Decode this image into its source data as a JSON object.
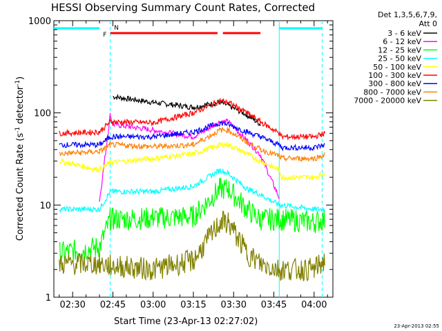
{
  "chart_data": {
    "type": "line",
    "title": "HESSI Observing Summary Count Rates, Corrected",
    "xlabel": "Start Time (23-Apr-13 02:27:02)",
    "ylabel": "Corrected Count Rate (s",
    "ylabel_sup": "-1",
    "ylabel_tail": " detector",
    "ylabel_end": ")",
    "xlim": [
      "02:23",
      "04:07"
    ],
    "xticks": [
      "02:30",
      "02:45",
      "03:00",
      "03:15",
      "03:30",
      "03:45",
      "04:00"
    ],
    "ylim": [
      1,
      1000
    ],
    "yscale": "log",
    "yticks": [
      "1",
      "10",
      "100",
      "1000"
    ],
    "legend_header": [
      "Det 1,3,5,6,7,9,",
      "Att 0"
    ],
    "legend_placement": "right",
    "footer_stamp": "23-Apr-2013 02:55",
    "flags": {
      "flare_label": "F",
      "night_label": "N",
      "saa_color": "#00ffff",
      "flare_color": "#ff0000",
      "saa_segments": [
        [
          "02:23",
          "02:40"
        ],
        [
          "03:47",
          "04:03"
        ]
      ],
      "flare_segments": [
        [
          "02:44",
          "03:24"
        ],
        [
          "03:26",
          "03:40"
        ]
      ]
    },
    "markers": [
      {
        "time": "02:44",
        "style": "dashed",
        "color": "#00ffff"
      },
      {
        "time": "03:47",
        "style": "solid",
        "color": "#00ffff"
      },
      {
        "time": "04:03",
        "style": "dashed",
        "color": "#00ffff"
      }
    ],
    "x_sample_minutes": [
      25,
      40,
      44,
      45,
      60,
      75,
      85,
      88,
      95,
      100,
      107,
      108,
      120,
      124
    ],
    "series": [
      {
        "name": "3 - 6 keV",
        "color": "#000000",
        "values": [
          null,
          null,
          null,
          150,
          130,
          115,
          130,
          120,
          95,
          75,
          null,
          null,
          null,
          null
        ]
      },
      {
        "name": "6 - 12 keV",
        "color": "#ff00ff",
        "values": [
          null,
          11,
          95,
          75,
          65,
          55,
          80,
          80,
          50,
          35,
          12,
          null,
          null,
          null
        ]
      },
      {
        "name": "12 - 25 keV",
        "color": "#00ff00",
        "values": [
          3,
          3.5,
          7,
          7,
          7.2,
          7.5,
          15,
          15,
          9,
          7,
          7,
          7,
          6.5,
          7
        ]
      },
      {
        "name": "25 - 50 keV",
        "color": "#00ffff",
        "values": [
          9,
          9,
          14,
          14,
          14,
          16,
          24,
          22,
          15,
          13,
          10,
          10,
          9,
          9
        ]
      },
      {
        "name": "50 - 100 keV",
        "color": "#ffff00",
        "values": [
          30,
          24,
          29,
          29,
          32,
          36,
          45,
          45,
          36,
          30,
          24,
          20,
          20,
          22
        ]
      },
      {
        "name": "100 - 300 keV",
        "color": "#ff0000",
        "values": [
          60,
          62,
          80,
          80,
          78,
          100,
          135,
          130,
          100,
          80,
          60,
          55,
          55,
          60
        ]
      },
      {
        "name": "300 - 800 keV",
        "color": "#0000ff",
        "values": [
          45,
          45,
          55,
          55,
          55,
          62,
          78,
          75,
          62,
          55,
          45,
          42,
          42,
          45
        ]
      },
      {
        "name": "800 - 7000 keV",
        "color": "#ff8000",
        "values": [
          36,
          38,
          45,
          45,
          43,
          45,
          65,
          65,
          48,
          40,
          34,
          32,
          32,
          35
        ]
      },
      {
        "name": "7000 - 20000 keV",
        "color": "#808000",
        "values": [
          2.3,
          2.3,
          2.2,
          2.2,
          2.0,
          2.5,
          6.5,
          6.5,
          3.0,
          2.3,
          2.0,
          2.0,
          2.0,
          2.5
        ]
      }
    ]
  }
}
